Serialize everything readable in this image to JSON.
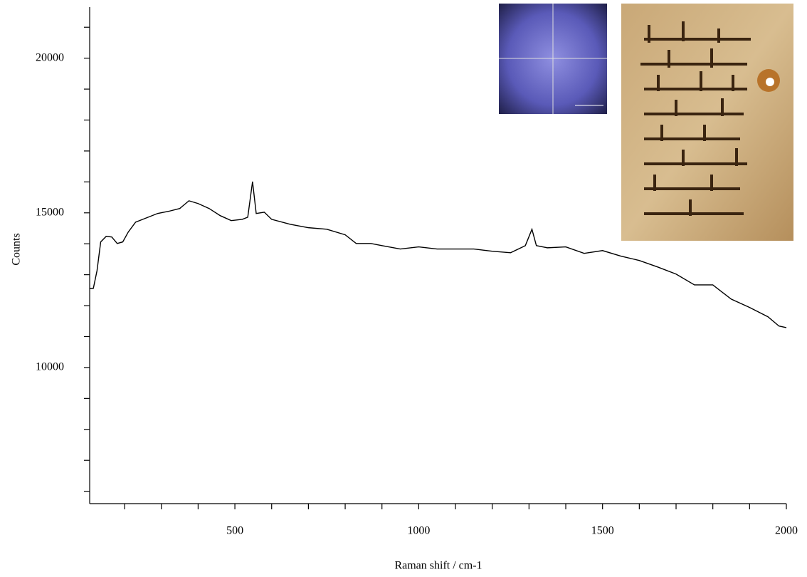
{
  "chart_data": {
    "type": "line",
    "x_label": "Raman shift / cm-1",
    "y_label": "Counts",
    "xlim": [
      105,
      2000
    ],
    "ylim": [
      5600,
      21650
    ],
    "xticks": [
      500,
      1000,
      1500,
      2000
    ],
    "xticks_minor": [
      200,
      300,
      400,
      600,
      700,
      800,
      900,
      1100,
      1200,
      1300,
      1400,
      1600,
      1700,
      1800,
      1900
    ],
    "yticks": [
      10000,
      15000,
      20000
    ],
    "yticks_minor": [
      6000,
      7000,
      8000,
      9000,
      11000,
      12000,
      13000,
      14000,
      16000,
      17000,
      18000,
      19000,
      21000
    ],
    "grid": false,
    "series": [
      {
        "name": "Counts",
        "color": "#000000",
        "x": [
          105,
          115,
          125,
          135,
          150,
          165,
          180,
          195,
          210,
          230,
          260,
          290,
          320,
          350,
          375,
          400,
          430,
          460,
          490,
          520,
          535,
          548,
          558,
          580,
          600,
          650,
          700,
          750,
          800,
          830,
          870,
          900,
          950,
          1000,
          1050,
          1100,
          1150,
          1200,
          1250,
          1290,
          1308,
          1320,
          1350,
          1400,
          1450,
          1500,
          1550,
          1600,
          1650,
          1700,
          1750,
          1800,
          1850,
          1900,
          1950,
          1980,
          2000
        ],
        "values": [
          12560,
          12560,
          13130,
          14060,
          14240,
          14220,
          14010,
          14060,
          14380,
          14700,
          14840,
          14980,
          15050,
          15140,
          15390,
          15300,
          15140,
          14910,
          14750,
          14790,
          14860,
          16010,
          14980,
          15020,
          14790,
          14630,
          14520,
          14470,
          14290,
          14010,
          14010,
          13940,
          13830,
          13900,
          13830,
          13830,
          13830,
          13760,
          13710,
          13940,
          14470,
          13940,
          13870,
          13900,
          13690,
          13780,
          13600,
          13460,
          13250,
          13020,
          12670,
          12670,
          12210,
          11940,
          11640,
          11340,
          11290
        ]
      }
    ]
  }
}
